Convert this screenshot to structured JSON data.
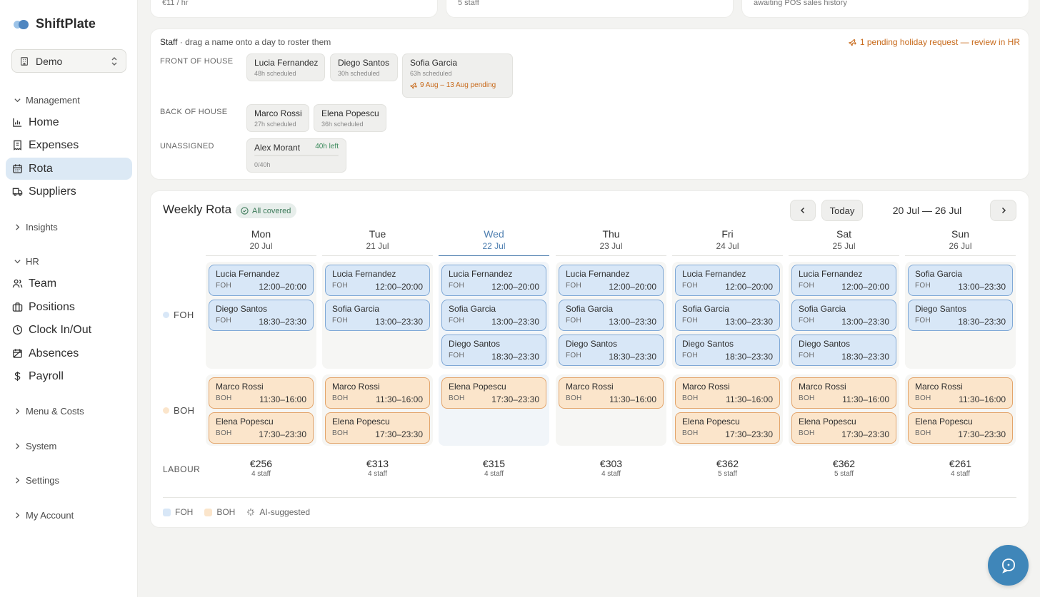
{
  "brand": {
    "name": "ShiftPlate"
  },
  "workspace": {
    "label": "Demo"
  },
  "sidebar": {
    "sections": [
      {
        "label": "Management",
        "expanded": true
      },
      {
        "label": "Insights",
        "expanded": false
      },
      {
        "label": "HR",
        "expanded": true
      },
      {
        "label": "Menu & Costs",
        "expanded": false
      },
      {
        "label": "System",
        "expanded": false
      },
      {
        "label": "Settings",
        "expanded": false
      },
      {
        "label": "My Account",
        "expanded": false
      }
    ],
    "items": [
      {
        "label": "Home",
        "icon": "chart-icon"
      },
      {
        "label": "Expenses",
        "icon": "receipt-icon"
      },
      {
        "label": "Rota",
        "icon": "calendar-icon",
        "active": true
      },
      {
        "label": "Suppliers",
        "icon": "truck-icon"
      },
      {
        "label": "Team",
        "icon": "users-icon"
      },
      {
        "label": "Positions",
        "icon": "briefcase-icon"
      },
      {
        "label": "Clock In/Out",
        "icon": "clock-icon"
      },
      {
        "label": "Absences",
        "icon": "calendar-off-icon"
      },
      {
        "label": "Payroll",
        "icon": "dollar-icon"
      }
    ]
  },
  "stats": [
    {
      "text": "€11 / hr"
    },
    {
      "text": "5 staff"
    },
    {
      "text": "awaiting POS sales history"
    }
  ],
  "staff_panel": {
    "title": "Staff",
    "hint": " · drag a name onto a day to roster them",
    "pending": "1 pending holiday request — review in HR",
    "groups": [
      {
        "label": "FRONT OF HOUSE",
        "members": [
          {
            "name": "Lucia Fernandez",
            "hours": "48h scheduled"
          },
          {
            "name": "Diego Santos",
            "hours": "30h scheduled"
          },
          {
            "name": "Sofia Garcia",
            "hours": "63h scheduled",
            "pending": "9 Aug – 13 Aug pending"
          }
        ]
      },
      {
        "label": "BACK OF HOUSE",
        "members": [
          {
            "name": "Marco Rossi",
            "hours": "27h scheduled"
          },
          {
            "name": "Elena Popescu",
            "hours": "36h scheduled"
          }
        ]
      },
      {
        "label": "UNASSIGNED",
        "members": [
          {
            "name": "Alex Morant",
            "left": "40h left",
            "hours": "0/40h",
            "progress": 0
          }
        ]
      }
    ]
  },
  "rota": {
    "title": "Weekly Rota",
    "status": "All covered",
    "today_label": "Today",
    "range": "20 Jul — 26 Jul",
    "days": [
      {
        "name": "Mon",
        "date": "20 Jul"
      },
      {
        "name": "Tue",
        "date": "21 Jul"
      },
      {
        "name": "Wed",
        "date": "22 Jul",
        "today": true
      },
      {
        "name": "Thu",
        "date": "23 Jul"
      },
      {
        "name": "Fri",
        "date": "24 Jul"
      },
      {
        "name": "Sat",
        "date": "25 Jul"
      },
      {
        "name": "Sun",
        "date": "26 Jul"
      }
    ],
    "rows": [
      {
        "label": "FOH",
        "tag": "FOH",
        "color": "#d8e7f7",
        "cells": [
          [
            {
              "name": "Lucia Fernandez",
              "time": "12:00–20:00"
            },
            {
              "name": "Diego Santos",
              "time": "18:30–23:30"
            }
          ],
          [
            {
              "name": "Lucia Fernandez",
              "time": "12:00–20:00"
            },
            {
              "name": "Sofia Garcia",
              "time": "13:00–23:30"
            }
          ],
          [
            {
              "name": "Lucia Fernandez",
              "time": "12:00–20:00"
            },
            {
              "name": "Sofia Garcia",
              "time": "13:00–23:30"
            },
            {
              "name": "Diego Santos",
              "time": "18:30–23:30"
            }
          ],
          [
            {
              "name": "Lucia Fernandez",
              "time": "12:00–20:00"
            },
            {
              "name": "Sofia Garcia",
              "time": "13:00–23:30"
            },
            {
              "name": "Diego Santos",
              "time": "18:30–23:30"
            }
          ],
          [
            {
              "name": "Lucia Fernandez",
              "time": "12:00–20:00"
            },
            {
              "name": "Sofia Garcia",
              "time": "13:00–23:30"
            },
            {
              "name": "Diego Santos",
              "time": "18:30–23:30"
            }
          ],
          [
            {
              "name": "Lucia Fernandez",
              "time": "12:00–20:00"
            },
            {
              "name": "Sofia Garcia",
              "time": "13:00–23:30"
            },
            {
              "name": "Diego Santos",
              "time": "18:30–23:30"
            }
          ],
          [
            {
              "name": "Sofia Garcia",
              "time": "13:00–23:30"
            },
            {
              "name": "Diego Santos",
              "time": "18:30–23:30"
            }
          ]
        ]
      },
      {
        "label": "BOH",
        "tag": "BOH",
        "color": "#fbe5cb",
        "cells": [
          [
            {
              "name": "Marco Rossi",
              "time": "11:30–16:00"
            },
            {
              "name": "Elena Popescu",
              "time": "17:30–23:30"
            }
          ],
          [
            {
              "name": "Marco Rossi",
              "time": "11:30–16:00"
            },
            {
              "name": "Elena Popescu",
              "time": "17:30–23:30"
            }
          ],
          [
            {
              "name": "Elena Popescu",
              "time": "17:30–23:30"
            }
          ],
          [
            {
              "name": "Marco Rossi",
              "time": "11:30–16:00"
            }
          ],
          [
            {
              "name": "Marco Rossi",
              "time": "11:30–16:00"
            },
            {
              "name": "Elena Popescu",
              "time": "17:30–23:30"
            }
          ],
          [
            {
              "name": "Marco Rossi",
              "time": "11:30–16:00"
            },
            {
              "name": "Elena Popescu",
              "time": "17:30–23:30"
            }
          ],
          [
            {
              "name": "Marco Rossi",
              "time": "11:30–16:00"
            },
            {
              "name": "Elena Popescu",
              "time": "17:30–23:30"
            }
          ]
        ]
      }
    ],
    "labour_label": "LABOUR",
    "labour": [
      {
        "cost": "€256",
        "staff": "4 staff"
      },
      {
        "cost": "€313",
        "staff": "4 staff"
      },
      {
        "cost": "€315",
        "staff": "4 staff"
      },
      {
        "cost": "€303",
        "staff": "4 staff"
      },
      {
        "cost": "€362",
        "staff": "5 staff"
      },
      {
        "cost": "€362",
        "staff": "5 staff"
      },
      {
        "cost": "€261",
        "staff": "4 staff"
      }
    ],
    "legend": [
      {
        "label": "FOH",
        "color": "#d8e7f7"
      },
      {
        "label": "BOH",
        "color": "#fbe5cb"
      },
      {
        "label": "AI-suggested",
        "icon": "sparkle-icon"
      }
    ]
  },
  "colors": {
    "accent": "#4f7fb0",
    "active_nav": "#dce9f5",
    "pending": "#c86a1b",
    "help": "#3f86b9"
  }
}
